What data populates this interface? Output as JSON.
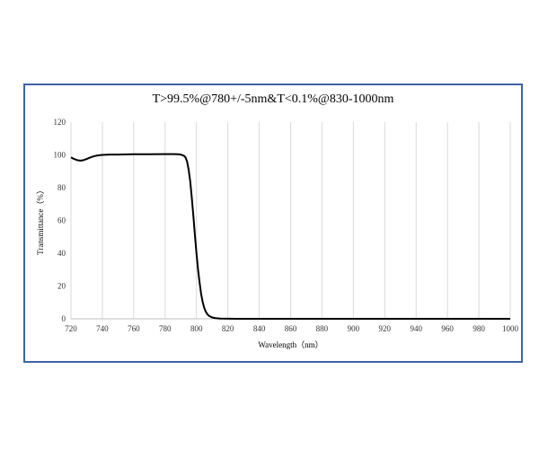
{
  "chart_data": {
    "type": "line",
    "title": "T>99.5%@780+/-5nm&T<0.1%@830-1000nm",
    "xlabel": "Wavelength（nm）",
    "ylabel": "Transmittance（%）",
    "xlim": [
      720,
      1000
    ],
    "ylim": [
      0,
      120
    ],
    "xticks": [
      720,
      740,
      760,
      780,
      800,
      820,
      840,
      860,
      880,
      900,
      920,
      940,
      960,
      980,
      1000
    ],
    "yticks": [
      0,
      20,
      40,
      60,
      80,
      100,
      120
    ],
    "grid": "vertical",
    "legend": "none",
    "series": [
      {
        "color": "#000000",
        "x": [
          720,
          722,
          724,
          726,
          728,
          730,
          732,
          734,
          736,
          738,
          740,
          745,
          750,
          760,
          770,
          780,
          785,
          788,
          790,
          792,
          793,
          794,
          795,
          796,
          797,
          798,
          799,
          800,
          801,
          802,
          803,
          804,
          805,
          806,
          807,
          808,
          810,
          812,
          815,
          820,
          825,
          830,
          850,
          900,
          950,
          1000
        ],
        "y": [
          98.5,
          97.5,
          96.8,
          96.5,
          96.8,
          97.5,
          98.3,
          99.0,
          99.5,
          99.8,
          100,
          100.2,
          100.2,
          100.4,
          100.4,
          100.5,
          100.5,
          100.4,
          100.2,
          99.5,
          98.5,
          96,
          91,
          84,
          74,
          63,
          51,
          40,
          30,
          22,
          15,
          10,
          6.5,
          4.2,
          2.7,
          1.8,
          0.8,
          0.4,
          0.15,
          0.05,
          0.02,
          0.01,
          0.01,
          0.01,
          0.01,
          0.01
        ]
      }
    ]
  }
}
